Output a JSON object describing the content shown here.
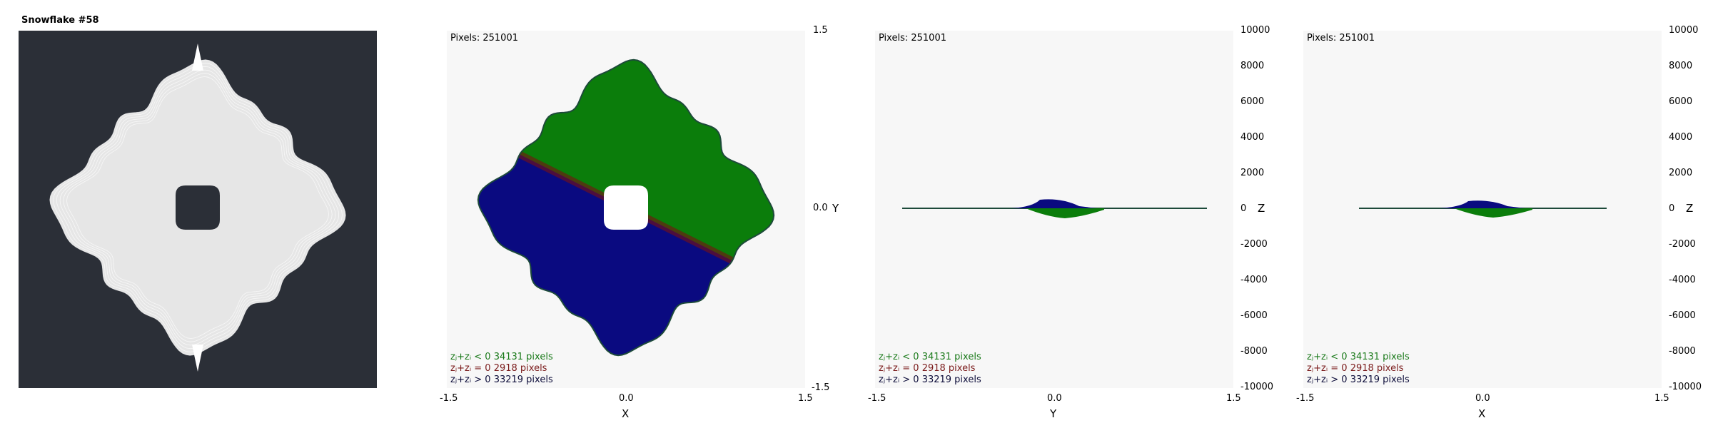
{
  "title": "Snowflake #58",
  "colors": {
    "background_dark": "#2b2f37",
    "fractal_fill": "#e6e6e6",
    "plot_background": "#f7f7f7",
    "series_negative": "#0b7d0b",
    "series_zero": "#7a1212",
    "series_positive": "#0a0a80"
  },
  "chart_data": [
    {
      "type": "scatter",
      "view": "XY",
      "pixels_label": "Pixels: 251001",
      "legend": [
        {
          "text": "zⱼ+zᵢ < 0  34131 pixels",
          "color": "#1a7a1a"
        },
        {
          "text": "zⱼ+zᵢ = 0  2918 pixels",
          "color": "#7a1a1a"
        },
        {
          "text": "zⱼ+zᵢ > 0  33219 pixels",
          "color": "#0d0d3a"
        }
      ],
      "xlabel": "X",
      "ylabel": "Y",
      "x_ticks": [
        "-1.5",
        "0.0",
        "1.5"
      ],
      "y_ticks": [
        "1.5",
        "0.0",
        "-1.5"
      ],
      "xlim": [
        -1.5,
        1.5
      ],
      "ylim": [
        -1.5,
        1.5
      ]
    },
    {
      "type": "area",
      "view": "YZ",
      "pixels_label": "Pixels: 251001",
      "legend": [
        {
          "text": "zⱼ+zᵢ < 0  34131 pixels",
          "color": "#1a7a1a"
        },
        {
          "text": "zⱼ+zᵢ = 0  2918 pixels",
          "color": "#7a1a1a"
        },
        {
          "text": "zⱼ+zᵢ > 0  33219 pixels",
          "color": "#0d0d3a"
        }
      ],
      "xlabel": "Y",
      "ylabel": "Z",
      "x_ticks": [
        "-1.5",
        "0.0",
        "1.5"
      ],
      "y_ticks": [
        "10000",
        "8000",
        "6000",
        "4000",
        "2000",
        "0",
        "-2000",
        "-4000",
        "-6000",
        "-8000",
        "-10000"
      ],
      "xlim": [
        -1.5,
        1.5
      ],
      "ylim": [
        -10000,
        10000
      ]
    },
    {
      "type": "area",
      "view": "XZ",
      "pixels_label": "Pixels: 251001",
      "legend": [
        {
          "text": "zⱼ+zᵢ < 0  34131 pixels",
          "color": "#1a7a1a"
        },
        {
          "text": "zⱼ+zᵢ = 0  2918 pixels",
          "color": "#7a1a1a"
        },
        {
          "text": "zⱼ+zᵢ > 0  33219 pixels",
          "color": "#0d0d3a"
        }
      ],
      "xlabel": "X",
      "ylabel": "Z",
      "x_ticks": [
        "-1.5",
        "0.0",
        "1.5"
      ],
      "y_ticks": [
        "10000",
        "8000",
        "6000",
        "4000",
        "2000",
        "0",
        "-2000",
        "-4000",
        "-6000",
        "-8000",
        "-10000"
      ],
      "xlim": [
        -1.5,
        1.5
      ],
      "ylim": [
        -10000,
        10000
      ]
    }
  ]
}
